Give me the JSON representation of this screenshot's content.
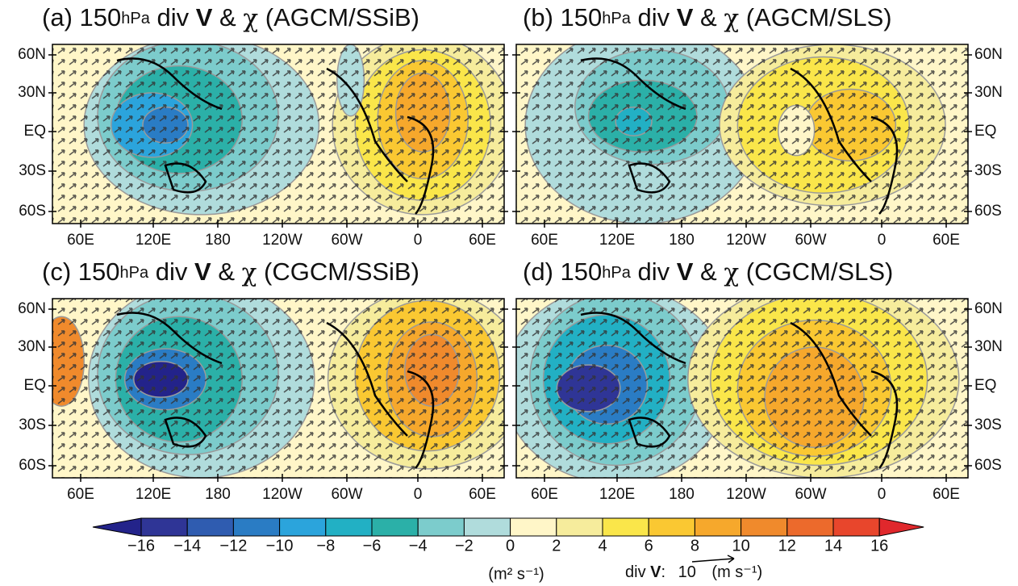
{
  "title_parts": {
    "level": "150",
    "level_unit": "hPa",
    "field": "div",
    "vector": "V",
    "amp": "&",
    "chi": "χ"
  },
  "panels": [
    {
      "label": "(a)",
      "model": "(AGCM/SSiB)"
    },
    {
      "label": "(b)",
      "model": "(AGCM/SLS)"
    },
    {
      "label": "(c)",
      "model": "(CGCM/SSiB)"
    },
    {
      "label": "(d)",
      "model": "(CGCM/SLS)"
    }
  ],
  "lat_labels": [
    "60N",
    "30N",
    "EQ",
    "30S",
    "60S"
  ],
  "lon_labels": [
    "60E",
    "120E",
    "180",
    "120W",
    "60W",
    "0",
    "60E"
  ],
  "colorbar": {
    "ticks": [
      "−16",
      "−14",
      "−12",
      "−10",
      "−8",
      "−6",
      "−4",
      "−2",
      "0",
      "2",
      "4",
      "6",
      "8",
      "10",
      "12",
      "14",
      "16"
    ],
    "units": "(m² s⁻¹)"
  },
  "vector_key": {
    "field": "div",
    "vector": "V",
    "colon": ":",
    "magnitude": "10",
    "units": "(m s⁻¹)"
  }
}
